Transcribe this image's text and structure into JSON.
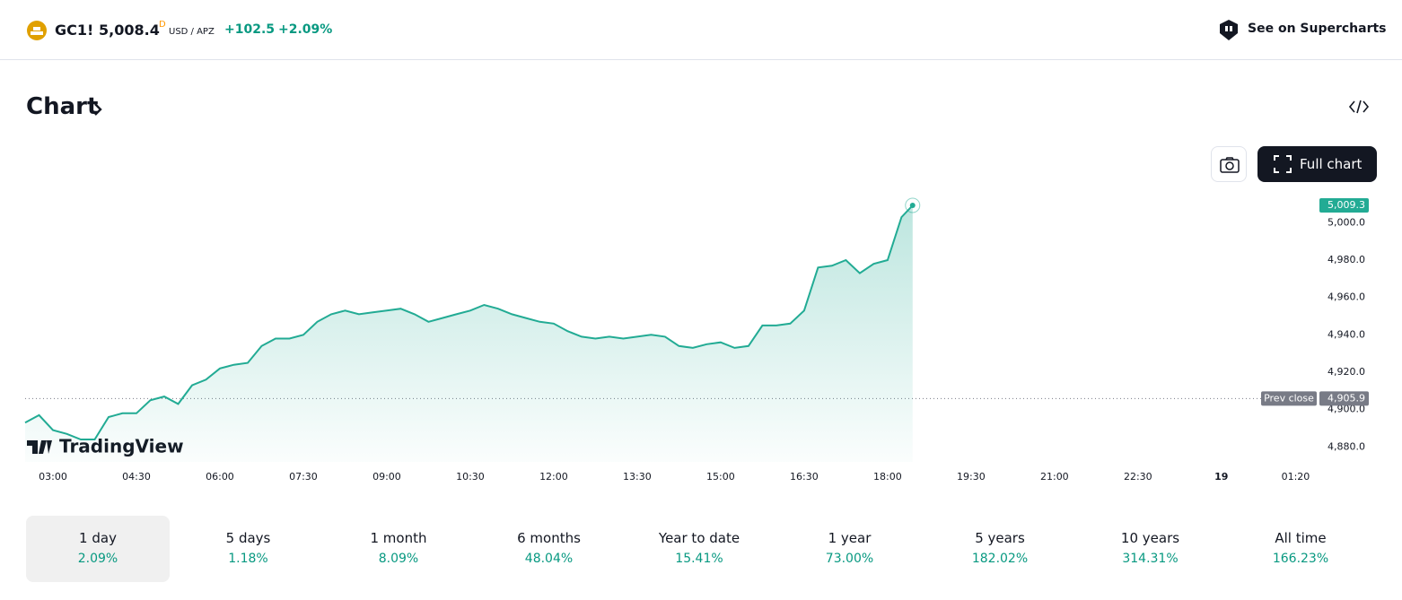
{
  "header": {
    "symbol": "GC1!",
    "price": "5,008.4",
    "price_flag": "D",
    "currency": "USD / APZ",
    "change": "+102.5",
    "change_pct": "+2.09%",
    "link": "See on Supercharts"
  },
  "section_title": "Chart",
  "full_chart_button": "Full chart",
  "watermark": "TradingView",
  "chart_data": {
    "type": "area",
    "color": "#22ab94",
    "x": [
      2.5,
      2.75,
      3.0,
      3.25,
      3.5,
      3.75,
      4.0,
      4.25,
      4.5,
      4.75,
      5.0,
      5.25,
      5.5,
      5.75,
      6.0,
      6.25,
      6.5,
      6.75,
      7.0,
      7.25,
      7.5,
      7.75,
      8.0,
      8.25,
      8.5,
      8.75,
      9.0,
      9.25,
      9.5,
      9.75,
      10.0,
      10.25,
      10.5,
      10.75,
      11.0,
      11.25,
      11.5,
      11.75,
      12.0,
      12.25,
      12.5,
      12.75,
      13.0,
      13.25,
      13.5,
      13.75,
      14.0,
      14.25,
      14.5,
      14.75,
      15.0,
      15.25,
      15.5,
      15.75,
      16.0,
      16.25,
      16.5,
      16.75,
      17.0,
      17.25,
      17.5,
      17.75,
      18.0,
      18.25,
      18.45
    ],
    "values": [
      4893,
      4897,
      4889,
      4887,
      4884,
      4884,
      4896,
      4898,
      4898,
      4905,
      4907,
      4903,
      4913,
      4916,
      4922,
      4924,
      4925,
      4934,
      4938,
      4938,
      4940,
      4947,
      4951,
      4953,
      4951,
      4952,
      4953,
      4954,
      4951,
      4947,
      4949,
      4951,
      4953,
      4956,
      4954,
      4951,
      4949,
      4947,
      4946,
      4942,
      4939,
      4938,
      4939,
      4938,
      4939,
      4940,
      4939,
      4934,
      4933,
      4935,
      4936,
      4933,
      4934,
      4945,
      4945,
      4946,
      4953,
      4976,
      4977,
      4980,
      4973,
      4978,
      4980,
      5003,
      5009.3
    ],
    "last_label": "5,009.3",
    "prev_close": {
      "value": 4905.9,
      "label": "4,905.9",
      "name": "Prev close"
    },
    "xlim": [
      2.5,
      25.6
    ],
    "xticks": [
      {
        "value": 3,
        "label": "03:00"
      },
      {
        "value": 4.5,
        "label": "04:30"
      },
      {
        "value": 6,
        "label": "06:00"
      },
      {
        "value": 7.5,
        "label": "07:30"
      },
      {
        "value": 9,
        "label": "09:00"
      },
      {
        "value": 10.5,
        "label": "10:30"
      },
      {
        "value": 12,
        "label": "12:00"
      },
      {
        "value": 13.5,
        "label": "13:30"
      },
      {
        "value": 15,
        "label": "15:00"
      },
      {
        "value": 16.5,
        "label": "16:30"
      },
      {
        "value": 18,
        "label": "18:00"
      },
      {
        "value": 19.5,
        "label": "19:30"
      },
      {
        "value": 21,
        "label": "21:00"
      },
      {
        "value": 22.5,
        "label": "22:30"
      },
      {
        "value": 24,
        "label": "19"
      },
      {
        "value": 25.333,
        "label": "01:20"
      }
    ],
    "ylim": [
      4872,
      5016
    ],
    "yticks": [
      {
        "value": 4880,
        "label": "4,880.0"
      },
      {
        "value": 4900,
        "label": "4,900.0"
      },
      {
        "value": 4920,
        "label": "4,920.0"
      },
      {
        "value": 4940,
        "label": "4,940.0"
      },
      {
        "value": 4960,
        "label": "4,960.0"
      },
      {
        "value": 4980,
        "label": "4,980.0"
      },
      {
        "value": 5000,
        "label": "5,000.0"
      }
    ]
  },
  "periods": [
    {
      "label": "1 day",
      "change": "2.09%"
    },
    {
      "label": "5 days",
      "change": "1.18%"
    },
    {
      "label": "1 month",
      "change": "8.09%"
    },
    {
      "label": "6 months",
      "change": "48.04%"
    },
    {
      "label": "Year to date",
      "change": "15.41%"
    },
    {
      "label": "1 year",
      "change": "73.00%"
    },
    {
      "label": "5 years",
      "change": "182.02%"
    },
    {
      "label": "10 years",
      "change": "314.31%"
    },
    {
      "label": "All time",
      "change": "166.23%"
    }
  ]
}
